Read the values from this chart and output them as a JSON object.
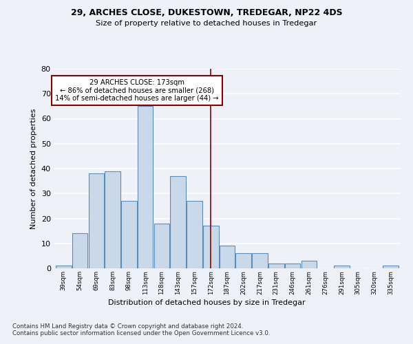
{
  "title1": "29, ARCHES CLOSE, DUKESTOWN, TREDEGAR, NP22 4DS",
  "title2": "Size of property relative to detached houses in Tredegar",
  "xlabel": "Distribution of detached houses by size in Tredegar",
  "ylabel": "Number of detached properties",
  "bins": [
    "39sqm",
    "54sqm",
    "69sqm",
    "83sqm",
    "98sqm",
    "113sqm",
    "128sqm",
    "143sqm",
    "157sqm",
    "172sqm",
    "187sqm",
    "202sqm",
    "217sqm",
    "231sqm",
    "246sqm",
    "261sqm",
    "276sqm",
    "291sqm",
    "305sqm",
    "320sqm",
    "335sqm"
  ],
  "bar_heights": [
    1,
    14,
    38,
    39,
    27,
    65,
    18,
    37,
    27,
    17,
    9,
    6,
    6,
    2,
    2,
    3,
    0,
    1,
    0,
    0,
    1
  ],
  "bar_color": "#c9d9ea",
  "bar_edge_color": "#5b8db8",
  "vline_x_index": 9,
  "vline_color": "#8b0000",
  "annotation_text": "29 ARCHES CLOSE: 173sqm\n← 86% of detached houses are smaller (268)\n14% of semi-detached houses are larger (44) →",
  "annotation_box_color": "white",
  "annotation_box_edge_color": "#8b0000",
  "ylim": [
    0,
    80
  ],
  "yticks": [
    0,
    10,
    20,
    30,
    40,
    50,
    60,
    70,
    80
  ],
  "footer1": "Contains HM Land Registry data © Crown copyright and database right 2024.",
  "footer2": "Contains public sector information licensed under the Open Government Licence v3.0.",
  "background_color": "#eef2f8",
  "grid_color": "#ffffff"
}
